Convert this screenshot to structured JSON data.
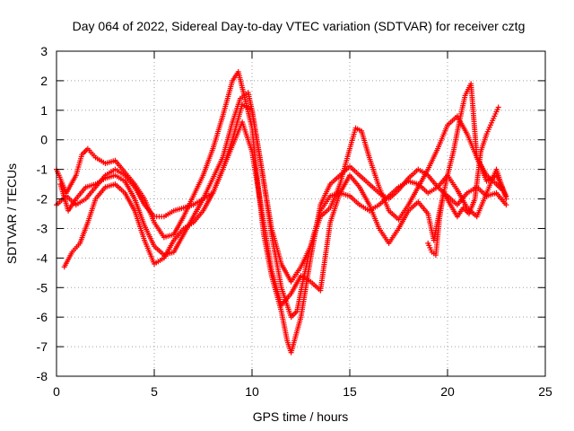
{
  "chart_data": {
    "type": "scatter",
    "title": "Day 064 of 2022, Sidereal Day-to-day VTEC variation (SDTVAR) for receiver cztg",
    "xlabel": "GPS time / hours",
    "ylabel": "SDTVAR / TECUs",
    "xlim": [
      0,
      25
    ],
    "ylim": [
      -8,
      3
    ],
    "xticks": [
      0,
      5,
      10,
      15,
      20,
      25
    ],
    "yticks": [
      -8,
      -7,
      -6,
      -5,
      -4,
      -3,
      -2,
      -1,
      0,
      1,
      2,
      3
    ],
    "grid": true,
    "marker": "+",
    "color": "#ff0000",
    "series": [
      {
        "name": "trace-1",
        "x": [
          0.0,
          0.5,
          1.0,
          1.3,
          1.6,
          2.0,
          2.5,
          3.0,
          3.5,
          4.0,
          4.5,
          5.0,
          5.5,
          6.0,
          6.5,
          7.0,
          7.5,
          8.0,
          8.5,
          9.0,
          9.3,
          9.6,
          10.0,
          10.3,
          10.6,
          11.0,
          11.5,
          11.8,
          12.0,
          12.5,
          13.0,
          13.5,
          14.0,
          14.5,
          15.0,
          15.5,
          16.0,
          16.5,
          17.0,
          17.5,
          18.0,
          18.5,
          19.0,
          19.5,
          20.0,
          20.5,
          21.0,
          21.5,
          22.0,
          22.5,
          23.0
        ],
        "y": [
          -1.0,
          -1.8,
          -1.2,
          -0.5,
          -0.3,
          -0.6,
          -0.8,
          -0.7,
          -1.1,
          -1.5,
          -2.0,
          -2.8,
          -3.3,
          -3.2,
          -2.6,
          -1.9,
          -1.2,
          -0.3,
          0.8,
          2.0,
          2.3,
          1.5,
          0.4,
          -1.5,
          -3.2,
          -4.6,
          -5.8,
          -6.8,
          -7.2,
          -6.0,
          -4.0,
          -2.2,
          -1.5,
          -1.2,
          -0.9,
          -1.2,
          -1.5,
          -1.8,
          -2.0,
          -1.7,
          -1.3,
          -1.0,
          -1.2,
          -1.6,
          -1.9,
          -2.2,
          -1.8,
          -1.6,
          -1.9,
          -1.8,
          -2.2
        ]
      },
      {
        "name": "trace-2",
        "x": [
          0.2,
          0.6,
          1.0,
          1.5,
          2.0,
          2.5,
          3.0,
          3.5,
          4.0,
          4.5,
          5.0,
          5.5,
          6.0,
          6.5,
          7.0,
          7.5,
          8.0,
          8.5,
          9.0,
          9.4,
          9.8,
          10.0,
          10.5,
          11.0,
          11.5,
          12.0,
          12.3,
          12.6,
          13.0,
          13.5,
          14.0,
          14.5,
          15.0,
          15.3,
          15.6,
          16.0,
          16.5,
          17.0,
          17.5,
          18.0,
          18.5,
          19.0,
          19.5,
          20.0,
          20.5,
          21.0,
          21.5,
          22.0,
          22.5,
          22.8
        ],
        "y": [
          -1.5,
          -2.4,
          -2.0,
          -1.6,
          -1.5,
          -1.3,
          -1.2,
          -1.4,
          -2.0,
          -2.9,
          -3.6,
          -3.9,
          -3.8,
          -3.2,
          -2.6,
          -2.0,
          -1.3,
          -0.6,
          0.6,
          1.4,
          1.6,
          1.0,
          -1.0,
          -3.2,
          -5.0,
          -6.0,
          -5.8,
          -4.8,
          -3.6,
          -2.6,
          -2.3,
          -1.5,
          -0.3,
          0.4,
          0.3,
          -0.6,
          -1.6,
          -2.4,
          -2.7,
          -2.2,
          -1.6,
          -1.0,
          -0.3,
          0.5,
          0.8,
          0.2,
          -0.6,
          -1.2,
          -1.5,
          -1.7
        ]
      },
      {
        "name": "trace-3",
        "x": [
          0.4,
          0.8,
          1.2,
          1.6,
          2.0,
          2.5,
          3.0,
          3.5,
          4.0,
          4.5,
          5.0,
          5.5,
          6.0,
          6.5,
          7.0,
          7.5,
          8.0,
          8.5,
          9.0,
          9.5,
          10.0,
          10.5,
          11.0,
          11.5,
          12.0,
          12.5,
          13.0,
          13.5,
          14.0,
          14.5,
          15.0,
          15.5,
          16.0,
          16.5,
          17.0,
          17.5,
          18.0,
          18.5,
          19.0,
          19.3,
          19.6,
          20.0,
          20.5,
          21.0,
          21.5,
          22.0,
          22.5,
          23.0
        ],
        "y": [
          -4.3,
          -3.8,
          -3.5,
          -2.8,
          -2.0,
          -1.6,
          -1.5,
          -1.8,
          -2.4,
          -3.4,
          -4.2,
          -4.0,
          -3.4,
          -3.0,
          -2.8,
          -2.4,
          -1.8,
          -1.0,
          -0.2,
          0.6,
          -0.4,
          -2.4,
          -4.4,
          -5.6,
          -5.2,
          -4.6,
          -4.8,
          -5.1,
          -2.8,
          -1.8,
          -1.2,
          -1.6,
          -2.2,
          -3.0,
          -3.5,
          -3.0,
          -2.4,
          -2.1,
          -2.5,
          -3.4,
          -2.4,
          -1.2,
          -1.7,
          -2.3,
          -2.6,
          -1.8,
          -1.0,
          -2.0
        ]
      },
      {
        "name": "trace-4",
        "x": [
          0.0,
          0.5,
          1.0,
          1.5,
          2.0,
          2.5,
          3.0,
          3.5,
          4.0,
          4.5,
          5.0,
          5.5,
          6.0,
          6.5,
          7.0,
          7.5,
          8.0,
          8.5,
          9.0,
          9.5,
          10.0,
          10.5,
          11.0,
          11.5,
          12.0,
          12.5,
          13.0,
          13.5,
          14.0,
          14.5,
          15.0,
          15.5,
          16.0,
          16.5,
          17.0,
          17.5,
          18.0,
          18.5,
          19.0,
          19.5,
          20.0,
          20.3,
          20.6,
          20.9,
          21.2,
          21.5,
          22.0,
          22.5,
          23.0
        ],
        "y": [
          -2.2,
          -1.9,
          -2.2,
          -2.0,
          -1.6,
          -1.2,
          -1.0,
          -1.2,
          -1.6,
          -2.2,
          -2.6,
          -2.6,
          -2.4,
          -2.3,
          -2.2,
          -2.0,
          -1.8,
          -1.0,
          0.0,
          1.2,
          1.0,
          -1.0,
          -3.0,
          -4.2,
          -4.8,
          -4.3,
          -3.6,
          -2.4,
          -1.9,
          -1.8,
          -1.9,
          -2.2,
          -2.4,
          -2.2,
          -1.9,
          -1.6,
          -1.4,
          -1.5,
          -1.8,
          -1.6,
          -1.2,
          -0.4,
          0.6,
          1.5,
          1.9,
          -0.6,
          -1.4,
          -1.2,
          -1.9
        ]
      },
      {
        "name": "trace-5",
        "x": [
          19.0,
          19.2,
          19.4,
          19.6,
          19.8,
          20.5,
          20.8,
          21.1,
          21.4,
          21.7,
          22.0,
          22.2,
          22.4,
          22.6
        ],
        "y": [
          -3.5,
          -3.8,
          -3.9,
          -2.6,
          -1.8,
          -2.6,
          -2.3,
          -2.5,
          -2.0,
          -0.4,
          0.2,
          0.5,
          0.8,
          1.1
        ]
      }
    ]
  }
}
